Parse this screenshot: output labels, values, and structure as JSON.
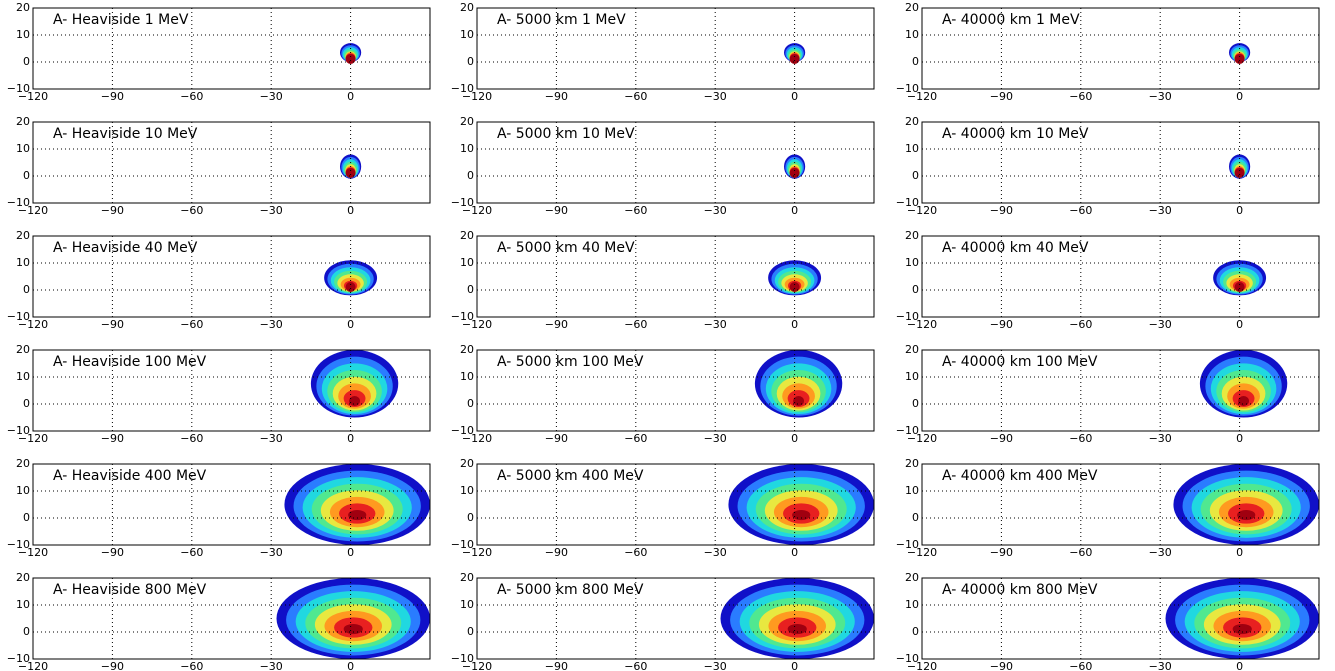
{
  "chart_data": [
    {
      "type": "heatmap",
      "title": "A- Heaviside 1 MeV",
      "source_x": [
        -4,
        4
      ],
      "source_y": [
        0,
        7
      ],
      "xlim": [
        -120,
        30
      ],
      "ylim": [
        -10,
        20
      ],
      "xticks": [
        {
          "value": -120,
          "label": "−120"
        },
        {
          "value": -90,
          "label": "−90"
        },
        {
          "value": -60,
          "label": "−60"
        },
        {
          "value": -30,
          "label": "−30"
        },
        0
      ],
      "yticks": [
        {
          "value": -10,
          "label": "−10"
        },
        0,
        10,
        20
      ],
      "grid": true
    },
    {
      "type": "heatmap",
      "title": "A- 5000 km 1 MeV",
      "source_x": [
        -4,
        4
      ],
      "source_y": [
        0,
        7
      ],
      "xlim": [
        -120,
        30
      ],
      "ylim": [
        -10,
        20
      ],
      "xticks": [
        {
          "value": -120,
          "label": "−120"
        },
        {
          "value": -90,
          "label": "−90"
        },
        {
          "value": -60,
          "label": "−60"
        },
        {
          "value": -30,
          "label": "−30"
        },
        0
      ],
      "yticks": [
        {
          "value": -10,
          "label": "−10"
        },
        0,
        10,
        20
      ],
      "grid": true
    },
    {
      "type": "heatmap",
      "title": "A- 40000 km 1 MeV",
      "source_x": [
        -4,
        4
      ],
      "source_y": [
        0,
        7
      ],
      "xlim": [
        -120,
        30
      ],
      "ylim": [
        -10,
        20
      ],
      "xticks": [
        {
          "value": -120,
          "label": "−120"
        },
        {
          "value": -90,
          "label": "−90"
        },
        {
          "value": -60,
          "label": "−60"
        },
        {
          "value": -30,
          "label": "−30"
        },
        0
      ],
      "yticks": [
        {
          "value": -10,
          "label": "−10"
        },
        0,
        10,
        20
      ],
      "grid": true
    },
    {
      "type": "heatmap",
      "title": "A- Heaviside 10 MeV",
      "source_x": [
        -4,
        4
      ],
      "source_y": [
        -1,
        8
      ],
      "xlim": [
        -120,
        30
      ],
      "ylim": [
        -10,
        20
      ],
      "xticks": [
        {
          "value": -120,
          "label": "−120"
        },
        {
          "value": -90,
          "label": "−90"
        },
        {
          "value": -60,
          "label": "−60"
        },
        {
          "value": -30,
          "label": "−30"
        },
        0
      ],
      "yticks": [
        {
          "value": -10,
          "label": "−10"
        },
        0,
        10,
        20
      ],
      "grid": true
    },
    {
      "type": "heatmap",
      "title": "A- 5000 km 10 MeV",
      "source_x": [
        -4,
        4
      ],
      "source_y": [
        -1,
        8
      ],
      "xlim": [
        -120,
        30
      ],
      "ylim": [
        -10,
        20
      ],
      "xticks": [
        {
          "value": -120,
          "label": "−120"
        },
        {
          "value": -90,
          "label": "−90"
        },
        {
          "value": -60,
          "label": "−60"
        },
        {
          "value": -30,
          "label": "−30"
        },
        0
      ],
      "yticks": [
        {
          "value": -10,
          "label": "−10"
        },
        0,
        10,
        20
      ],
      "grid": true
    },
    {
      "type": "heatmap",
      "title": "A- 40000 km 10 MeV",
      "source_x": [
        -4,
        4
      ],
      "source_y": [
        -1,
        8
      ],
      "xlim": [
        -120,
        30
      ],
      "ylim": [
        -10,
        20
      ],
      "xticks": [
        {
          "value": -120,
          "label": "−120"
        },
        {
          "value": -90,
          "label": "−90"
        },
        {
          "value": -60,
          "label": "−60"
        },
        {
          "value": -30,
          "label": "−30"
        },
        0
      ],
      "yticks": [
        {
          "value": -10,
          "label": "−10"
        },
        0,
        10,
        20
      ],
      "grid": true
    },
    {
      "type": "heatmap",
      "title": "A- Heaviside 40 MeV",
      "source_x": [
        -10,
        10
      ],
      "source_y": [
        -2,
        11
      ],
      "xlim": [
        -120,
        30
      ],
      "ylim": [
        -10,
        20
      ],
      "xticks": [
        {
          "value": -120,
          "label": "−120"
        },
        {
          "value": -90,
          "label": "−90"
        },
        {
          "value": -60,
          "label": "−60"
        },
        {
          "value": -30,
          "label": "−30"
        },
        0
      ],
      "yticks": [
        {
          "value": -10,
          "label": "−10"
        },
        0,
        10,
        20
      ],
      "grid": true
    },
    {
      "type": "heatmap",
      "title": "A- 5000 km 40 MeV",
      "source_x": [
        -10,
        10
      ],
      "source_y": [
        -2,
        11
      ],
      "xlim": [
        -120,
        30
      ],
      "ylim": [
        -10,
        20
      ],
      "xticks": [
        {
          "value": -120,
          "label": "−120"
        },
        {
          "value": -90,
          "label": "−90"
        },
        {
          "value": -60,
          "label": "−60"
        },
        {
          "value": -30,
          "label": "−30"
        },
        0
      ],
      "yticks": [
        {
          "value": -10,
          "label": "−10"
        },
        0,
        10,
        20
      ],
      "grid": true
    },
    {
      "type": "heatmap",
      "title": "A- 40000 km 40 MeV",
      "source_x": [
        -10,
        10
      ],
      "source_y": [
        -2,
        11
      ],
      "xlim": [
        -120,
        30
      ],
      "ylim": [
        -10,
        20
      ],
      "xticks": [
        {
          "value": -120,
          "label": "−120"
        },
        {
          "value": -90,
          "label": "−90"
        },
        {
          "value": -60,
          "label": "−60"
        },
        {
          "value": -30,
          "label": "−30"
        },
        0
      ],
      "yticks": [
        {
          "value": -10,
          "label": "−10"
        },
        0,
        10,
        20
      ],
      "grid": true
    },
    {
      "type": "heatmap",
      "title": "A- Heaviside 100 MeV",
      "source_x": [
        -15,
        18
      ],
      "source_y": [
        -5,
        20
      ],
      "xlim": [
        -120,
        30
      ],
      "ylim": [
        -10,
        20
      ],
      "xticks": [
        {
          "value": -120,
          "label": "−120"
        },
        {
          "value": -90,
          "label": "−90"
        },
        {
          "value": -60,
          "label": "−60"
        },
        {
          "value": -30,
          "label": "−30"
        },
        0
      ],
      "yticks": [
        {
          "value": -10,
          "label": "−10"
        },
        0,
        10,
        20
      ],
      "grid": true
    },
    {
      "type": "heatmap",
      "title": "A- 5000 km 100 MeV",
      "source_x": [
        -15,
        18
      ],
      "source_y": [
        -5,
        20
      ],
      "xlim": [
        -120,
        30
      ],
      "ylim": [
        -10,
        20
      ],
      "xticks": [
        {
          "value": -120,
          "label": "−120"
        },
        {
          "value": -90,
          "label": "−90"
        },
        {
          "value": -60,
          "label": "−60"
        },
        {
          "value": -30,
          "label": "−30"
        },
        0
      ],
      "yticks": [
        {
          "value": -10,
          "label": "−10"
        },
        0,
        10,
        20
      ],
      "grid": true
    },
    {
      "type": "heatmap",
      "title": "A- 40000 km 100 MeV",
      "source_x": [
        -15,
        18
      ],
      "source_y": [
        -5,
        20
      ],
      "xlim": [
        -120,
        30
      ],
      "ylim": [
        -10,
        20
      ],
      "xticks": [
        {
          "value": -120,
          "label": "−120"
        },
        {
          "value": -90,
          "label": "−90"
        },
        {
          "value": -60,
          "label": "−60"
        },
        {
          "value": -30,
          "label": "−30"
        },
        0
      ],
      "yticks": [
        {
          "value": -10,
          "label": "−10"
        },
        0,
        10,
        20
      ],
      "grid": true
    },
    {
      "type": "heatmap",
      "title": "A- Heaviside 400 MeV",
      "source_x": [
        -25,
        30
      ],
      "source_y": [
        -10,
        20
      ],
      "xlim": [
        -120,
        30
      ],
      "ylim": [
        -10,
        20
      ],
      "xticks": [
        {
          "value": -120,
          "label": "−120"
        },
        {
          "value": -90,
          "label": "−90"
        },
        {
          "value": -60,
          "label": "−60"
        },
        {
          "value": -30,
          "label": "−30"
        },
        0
      ],
      "yticks": [
        {
          "value": -10,
          "label": "−10"
        },
        0,
        10,
        20
      ],
      "grid": true
    },
    {
      "type": "heatmap",
      "title": "A- 5000 km 400 MeV",
      "source_x": [
        -25,
        30
      ],
      "source_y": [
        -10,
        20
      ],
      "xlim": [
        -120,
        30
      ],
      "ylim": [
        -10,
        20
      ],
      "xticks": [
        {
          "value": -120,
          "label": "−120"
        },
        {
          "value": -90,
          "label": "−90"
        },
        {
          "value": -60,
          "label": "−60"
        },
        {
          "value": -30,
          "label": "−30"
        },
        0
      ],
      "yticks": [
        {
          "value": -10,
          "label": "−10"
        },
        0,
        10,
        20
      ],
      "grid": true
    },
    {
      "type": "heatmap",
      "title": "A- 40000 km 400 MeV",
      "source_x": [
        -25,
        30
      ],
      "source_y": [
        -10,
        20
      ],
      "xlim": [
        -120,
        30
      ],
      "ylim": [
        -10,
        20
      ],
      "xticks": [
        {
          "value": -120,
          "label": "−120"
        },
        {
          "value": -90,
          "label": "−90"
        },
        {
          "value": -60,
          "label": "−60"
        },
        {
          "value": -30,
          "label": "−30"
        },
        0
      ],
      "yticks": [
        {
          "value": -10,
          "label": "−10"
        },
        0,
        10,
        20
      ],
      "grid": true
    },
    {
      "type": "heatmap",
      "title": "A- Heaviside 800 MeV",
      "source_x": [
        -28,
        30
      ],
      "source_y": [
        -10,
        20
      ],
      "xlim": [
        -120,
        30
      ],
      "ylim": [
        -10,
        20
      ],
      "xticks": [
        {
          "value": -120,
          "label": "−120"
        },
        {
          "value": -90,
          "label": "−90"
        },
        {
          "value": -60,
          "label": "−60"
        },
        {
          "value": -30,
          "label": "−30"
        },
        0
      ],
      "yticks": [
        {
          "value": -10,
          "label": "−10"
        },
        0,
        10,
        20
      ],
      "grid": true
    },
    {
      "type": "heatmap",
      "title": "A- 5000 km 800 MeV",
      "source_x": [
        -28,
        30
      ],
      "source_y": [
        -10,
        20
      ],
      "xlim": [
        -120,
        30
      ],
      "ylim": [
        -10,
        20
      ],
      "xticks": [
        {
          "value": -120,
          "label": "−120"
        },
        {
          "value": -90,
          "label": "−90"
        },
        {
          "value": -60,
          "label": "−60"
        },
        {
          "value": -30,
          "label": "−30"
        },
        0
      ],
      "yticks": [
        {
          "value": -10,
          "label": "−10"
        },
        0,
        10,
        20
      ],
      "grid": true
    },
    {
      "type": "heatmap",
      "title": "A- 40000 km 800 MeV",
      "source_x": [
        -28,
        30
      ],
      "source_y": [
        -10,
        20
      ],
      "xlim": [
        -120,
        30
      ],
      "ylim": [
        -10,
        20
      ],
      "xticks": [
        {
          "value": -120,
          "label": "−120"
        },
        {
          "value": -90,
          "label": "−90"
        },
        {
          "value": -60,
          "label": "−60"
        },
        {
          "value": -30,
          "label": "−30"
        },
        0
      ],
      "yticks": [
        {
          "value": -10,
          "label": "−10"
        },
        0,
        10,
        20
      ],
      "grid": true
    }
  ]
}
